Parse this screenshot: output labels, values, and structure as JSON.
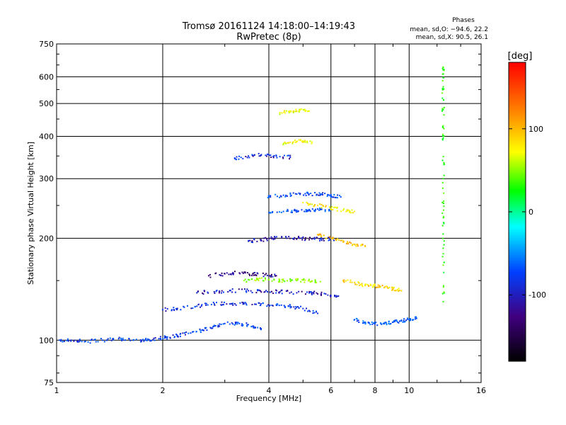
{
  "chart_data": {
    "type": "scatter",
    "title": "Tromsø 20161124 14:18:00–14:19:43",
    "subtitle": "RwPretec (8p)",
    "xlabel": "Frequency [MHz]",
    "ylabel": "Stationary phase Virtual Height [km]",
    "xscale": "log",
    "yscale": "log",
    "xlim": [
      1,
      16
    ],
    "ylim": [
      75,
      750
    ],
    "xticks": [
      1,
      2,
      4,
      6,
      8,
      10,
      16
    ],
    "yticks": [
      75,
      100,
      200,
      300,
      400,
      500,
      600,
      750
    ],
    "grid": true,
    "phase_stats": {
      "header": "Phases",
      "line_o": "mean, sd,O: −94.6, 22.2",
      "line_x": "mean, sd,X:  90.5, 26.1"
    },
    "colorbar": {
      "label": "[deg]",
      "range": [
        -180,
        180
      ],
      "ticks": [
        100,
        0,
        -100
      ],
      "colormap": "rainbow (black-purple-blue-cyan-green-yellow-red)"
    },
    "traces": [
      {
        "x": [
          1.02,
          1.1,
          1.2,
          1.35,
          1.5,
          1.65,
          1.8,
          1.95,
          2.05,
          2.2,
          2.4,
          2.6,
          2.8,
          3.0,
          3.3,
          3.6,
          3.8
        ],
        "y": [
          100,
          100,
          99,
          100,
          101,
          100,
          100,
          101,
          102,
          103,
          105,
          107,
          110,
          112,
          112,
          110,
          108
        ],
        "phase": -100
      },
      {
        "x": [
          2.0,
          2.2,
          2.5,
          2.8,
          3.1,
          3.4,
          3.8,
          4.2,
          4.6,
          5.0,
          5.5
        ],
        "y": [
          123,
          124,
          126,
          128,
          128,
          128,
          128,
          127,
          126,
          124,
          120
        ],
        "phase": -105
      },
      {
        "x": [
          2.5,
          2.8,
          3.1,
          3.5,
          3.9,
          4.3,
          4.8,
          5.3,
          5.8,
          6.3
        ],
        "y": [
          138,
          139,
          140,
          140,
          139,
          139,
          138,
          138,
          137,
          135
        ],
        "phase": -115
      },
      {
        "x": [
          2.7,
          3.0,
          3.3,
          3.6,
          3.9,
          4.2
        ],
        "y": [
          155,
          157,
          158,
          157,
          156,
          155
        ],
        "phase": -130
      },
      {
        "x": [
          3.4,
          3.7,
          4.0,
          4.4,
          4.8,
          5.2,
          5.6
        ],
        "y": [
          150,
          151,
          151,
          150,
          150,
          150,
          149
        ],
        "phase": 60
      },
      {
        "x": [
          3.5,
          3.8,
          4.1,
          4.5,
          4.9,
          5.3,
          5.7,
          6.2
        ],
        "y": [
          196,
          198,
          200,
          200,
          200,
          199,
          199,
          198
        ],
        "phase": -120
      },
      {
        "x": [
          4.0,
          4.4,
          4.8,
          5.2,
          5.6,
          6.0,
          6.4
        ],
        "y": [
          265,
          268,
          270,
          270,
          270,
          268,
          265
        ],
        "phase": -95
      },
      {
        "x": [
          4.0,
          4.4,
          4.8,
          5.2,
          5.6,
          6.0
        ],
        "y": [
          238,
          240,
          242,
          243,
          243,
          242
        ],
        "phase": -90
      },
      {
        "x": [
          3.2,
          3.5,
          3.8,
          4.2,
          4.6
        ],
        "y": [
          345,
          350,
          352,
          350,
          347
        ],
        "phase": -110
      },
      {
        "x": [
          4.3,
          4.6,
          4.9,
          5.2
        ],
        "y": [
          470,
          475,
          478,
          475
        ],
        "phase": 85
      },
      {
        "x": [
          4.4,
          4.7,
          5.0,
          5.3
        ],
        "y": [
          380,
          385,
          388,
          385
        ],
        "phase": 90
      },
      {
        "x": [
          5.0,
          5.5,
          6.0,
          6.5,
          7.0
        ],
        "y": [
          255,
          250,
          245,
          242,
          240
        ],
        "phase": 95
      },
      {
        "x": [
          5.5,
          6.0,
          6.5,
          7.0,
          7.5
        ],
        "y": [
          205,
          200,
          195,
          192,
          190
        ],
        "phase": 110
      },
      {
        "x": [
          6.5,
          7.0,
          7.5,
          8.0,
          8.5,
          9.0,
          9.5
        ],
        "y": [
          150,
          148,
          145,
          145,
          143,
          142,
          140
        ],
        "phase": 100
      },
      {
        "x": [
          7.0,
          7.5,
          8.0,
          8.5,
          9.0,
          9.5,
          10.0,
          10.5
        ],
        "y": [
          115,
          113,
          112,
          112,
          113,
          114,
          115,
          116
        ],
        "phase": -90
      },
      {
        "x": [
          12.5,
          12.5,
          12.5,
          12.5,
          12.5,
          12.5,
          12.5,
          12.5
        ],
        "y": [
          640,
          560,
          480,
          400,
          300,
          230,
          180,
          130
        ],
        "phase": 30
      }
    ]
  }
}
